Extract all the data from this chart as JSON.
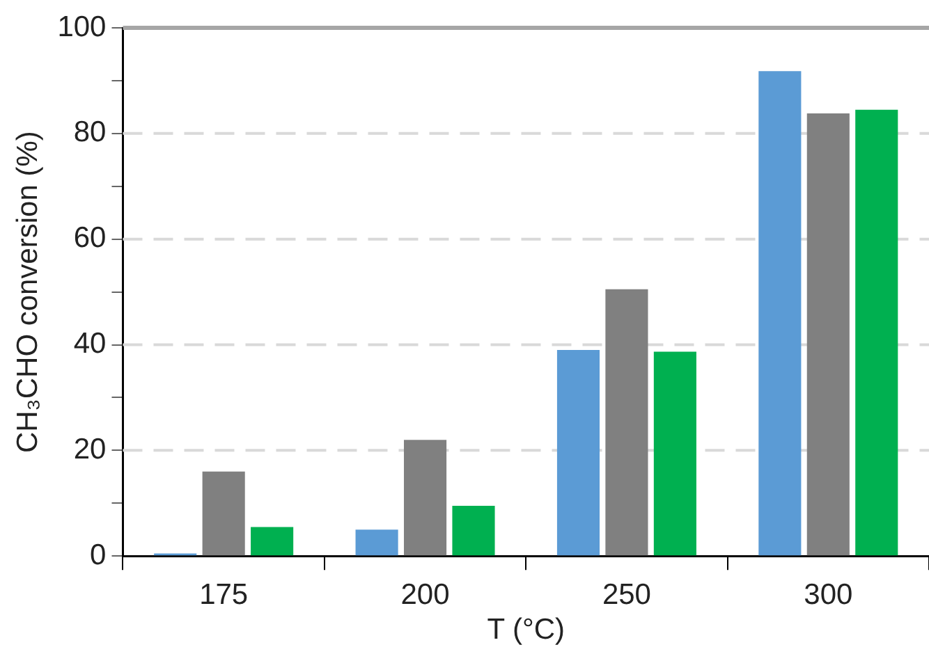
{
  "chart_data": {
    "type": "bar",
    "xlabel": "T (°C)",
    "ylabel": "CH₃CHO conversion (%)",
    "categories": [
      "175",
      "200",
      "250",
      "300"
    ],
    "series": [
      {
        "color": "#5b9bd5",
        "values": [
          0.5,
          5,
          39,
          91.8
        ]
      },
      {
        "color": "#808080",
        "values": [
          16,
          22,
          50.5,
          83.8
        ]
      },
      {
        "color": "#00b050",
        "values": [
          5.5,
          9.5,
          38.7,
          84.5
        ]
      }
    ],
    "ylim": [
      0,
      100
    ],
    "yticks": [
      0,
      {
        "value": 10,
        "label": null
      },
      20,
      {
        "value": 30,
        "label": null
      },
      40,
      {
        "value": 50,
        "label": null
      },
      60,
      {
        "value": 70,
        "label": null
      },
      80,
      {
        "value": 90,
        "label": null
      },
      100
    ],
    "grid": "y"
  }
}
